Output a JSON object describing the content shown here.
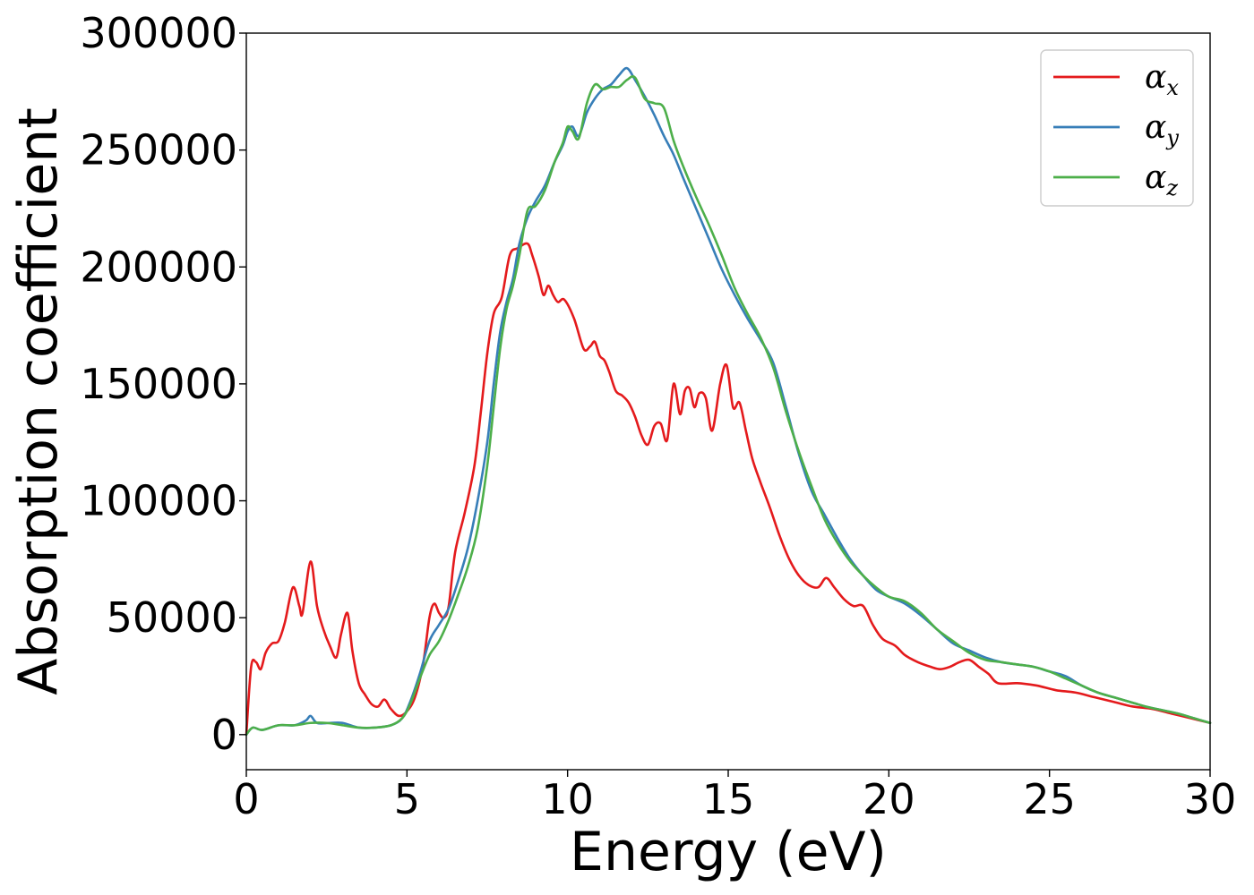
{
  "chart_data": {
    "type": "line",
    "title": "",
    "xlabel": "Energy (eV)",
    "ylabel": "Absorption coefficient",
    "xlim": [
      0,
      30
    ],
    "ylim": [
      -15000,
      300000
    ],
    "xticks": [
      0,
      5,
      10,
      15,
      20,
      25,
      30
    ],
    "yticks": [
      0,
      50000,
      100000,
      150000,
      200000,
      250000,
      300000
    ],
    "grid": false,
    "legend_position": "top-right",
    "series": [
      {
        "name": "α",
        "subscript": "x",
        "color": "#e41a1c",
        "x": [
          0,
          0.15,
          0.3,
          0.45,
          0.6,
          0.8,
          1.0,
          1.2,
          1.45,
          1.65,
          1.75,
          2.0,
          2.2,
          2.4,
          2.6,
          2.8,
          2.95,
          3.15,
          3.3,
          3.5,
          3.7,
          3.9,
          4.1,
          4.3,
          4.5,
          4.75,
          5.0,
          5.25,
          5.5,
          5.7,
          5.85,
          6.0,
          6.15,
          6.3,
          6.5,
          6.8,
          7.1,
          7.3,
          7.5,
          7.7,
          7.95,
          8.2,
          8.45,
          8.75,
          8.9,
          9.1,
          9.25,
          9.4,
          9.55,
          9.7,
          9.9,
          10.2,
          10.5,
          10.7,
          10.85,
          11.0,
          11.15,
          11.3,
          11.5,
          11.7,
          11.9,
          12.1,
          12.3,
          12.5,
          12.7,
          12.9,
          13.1,
          13.3,
          13.5,
          13.65,
          13.8,
          13.95,
          14.1,
          14.3,
          14.5,
          14.75,
          14.95,
          15.15,
          15.35,
          15.55,
          15.75,
          16.0,
          16.3,
          16.6,
          16.9,
          17.2,
          17.5,
          17.8,
          18.05,
          18.3,
          18.6,
          18.9,
          19.2,
          19.5,
          19.8,
          20.2,
          20.5,
          20.9,
          21.3,
          21.6,
          21.9,
          22.2,
          22.5,
          22.8,
          23.1,
          23.4,
          24.0,
          24.6,
          25.2,
          25.8,
          26.4,
          27.0,
          27.6,
          28.2,
          28.8,
          29.4,
          30.0
        ],
        "y": [
          0,
          29000,
          31000,
          28000,
          35000,
          39000,
          40000,
          48000,
          63000,
          55000,
          52000,
          74000,
          55000,
          45000,
          38000,
          33000,
          43000,
          52000,
          36000,
          22000,
          17000,
          13000,
          12000,
          15000,
          11000,
          8000,
          10000,
          16000,
          30000,
          50000,
          56000,
          52000,
          50000,
          55000,
          78000,
          95000,
          115000,
          138000,
          163000,
          180000,
          187000,
          205000,
          208000,
          210000,
          205000,
          196000,
          188000,
          192000,
          188000,
          185000,
          186000,
          178000,
          165000,
          166000,
          168000,
          162000,
          160000,
          155000,
          147000,
          145000,
          142000,
          136000,
          128000,
          124000,
          132000,
          133000,
          126000,
          150000,
          137000,
          147000,
          148000,
          140000,
          146000,
          144000,
          130000,
          150000,
          158000,
          140000,
          142000,
          130000,
          118000,
          108000,
          97000,
          85000,
          75000,
          68000,
          64000,
          63000,
          67000,
          63000,
          58000,
          55000,
          55000,
          47000,
          41000,
          38000,
          34000,
          31000,
          29000,
          28000,
          29000,
          31000,
          32000,
          29000,
          26000,
          22000,
          22000,
          21000,
          19000,
          18000,
          16000,
          14000,
          12000,
          11000,
          9000,
          7000,
          5000
        ]
      },
      {
        "name": "α",
        "subscript": "y",
        "color": "#377eb8",
        "x": [
          0,
          0.2,
          0.5,
          1.0,
          1.5,
          1.85,
          2.0,
          2.2,
          2.6,
          3.0,
          3.5,
          4.0,
          4.5,
          4.85,
          5.1,
          5.4,
          5.7,
          6.0,
          6.3,
          6.6,
          6.9,
          7.2,
          7.5,
          7.7,
          7.9,
          8.1,
          8.3,
          8.5,
          8.75,
          9.0,
          9.3,
          9.6,
          9.85,
          10.0,
          10.15,
          10.35,
          10.6,
          10.85,
          11.1,
          11.35,
          11.6,
          11.85,
          12.1,
          12.4,
          12.7,
          13.0,
          13.3,
          13.6,
          14.0,
          14.4,
          14.8,
          15.2,
          15.6,
          16.0,
          16.4,
          16.8,
          17.2,
          17.6,
          18.0,
          18.4,
          18.8,
          19.2,
          19.6,
          20.0,
          20.5,
          21.0,
          21.5,
          22.0,
          22.5,
          23.0,
          23.5,
          24.0,
          24.5,
          25.0,
          25.5,
          26.0,
          26.5,
          27.0,
          27.5,
          28.0,
          28.5,
          29.0,
          29.5,
          30.0
        ],
        "y": [
          0,
          3000,
          2000,
          4000,
          4000,
          6000,
          8000,
          5000,
          5000,
          5000,
          3000,
          3000,
          4000,
          7000,
          14000,
          26000,
          40000,
          47000,
          54000,
          66000,
          80000,
          100000,
          125000,
          150000,
          172000,
          185000,
          195000,
          210000,
          221000,
          228000,
          235000,
          245000,
          252000,
          258000,
          260000,
          256000,
          266000,
          272000,
          276000,
          278000,
          282000,
          285000,
          280000,
          273000,
          265000,
          256000,
          248000,
          238000,
          225000,
          212000,
          199000,
          188000,
          178000,
          169000,
          159000,
          140000,
          120000,
          104000,
          94000,
          84000,
          75000,
          68000,
          62000,
          59000,
          56000,
          51000,
          45000,
          39000,
          36000,
          33000,
          31000,
          30000,
          29000,
          27000,
          25000,
          21000,
          18000,
          16000,
          14000,
          12000,
          10500,
          9000,
          7000,
          5000
        ]
      },
      {
        "name": "α",
        "subscript": "z",
        "color": "#4daf4a",
        "x": [
          0,
          0.2,
          0.5,
          1.0,
          1.5,
          2.0,
          2.5,
          3.0,
          3.5,
          4.0,
          4.5,
          4.85,
          5.1,
          5.4,
          5.7,
          6.0,
          6.3,
          6.6,
          6.9,
          7.2,
          7.5,
          7.7,
          7.9,
          8.1,
          8.3,
          8.5,
          8.75,
          9.0,
          9.3,
          9.6,
          9.85,
          10.0,
          10.15,
          10.35,
          10.6,
          10.85,
          11.1,
          11.35,
          11.6,
          11.85,
          12.1,
          12.4,
          12.7,
          13.0,
          13.3,
          13.6,
          14.0,
          14.4,
          14.8,
          15.2,
          15.6,
          16.0,
          16.4,
          16.8,
          17.2,
          17.6,
          18.0,
          18.4,
          18.8,
          19.2,
          19.6,
          20.0,
          20.5,
          21.0,
          21.5,
          22.0,
          22.5,
          23.0,
          23.5,
          24.0,
          24.5,
          25.0,
          25.5,
          26.0,
          26.5,
          27.0,
          27.5,
          28.0,
          28.5,
          29.0,
          29.5,
          30.0
        ],
        "y": [
          0,
          3000,
          2000,
          4000,
          4000,
          5000,
          5000,
          4000,
          3000,
          3000,
          4000,
          7000,
          13000,
          24000,
          34000,
          40000,
          49000,
          60000,
          72000,
          88000,
          115000,
          140000,
          165000,
          182000,
          192000,
          205000,
          224000,
          226000,
          233000,
          245000,
          253000,
          260000,
          258000,
          255000,
          270000,
          278000,
          276000,
          277000,
          277000,
          280000,
          281000,
          272000,
          270000,
          268000,
          254000,
          243000,
          230000,
          218000,
          205000,
          191000,
          180000,
          170000,
          157000,
          138000,
          121000,
          106000,
          92000,
          82000,
          74000,
          68000,
          63000,
          59000,
          57000,
          52000,
          45000,
          40000,
          35000,
          32000,
          31000,
          30000,
          29000,
          27000,
          24000,
          21000,
          18000,
          16000,
          14000,
          12000,
          10500,
          9000,
          7000,
          5000
        ]
      }
    ]
  }
}
